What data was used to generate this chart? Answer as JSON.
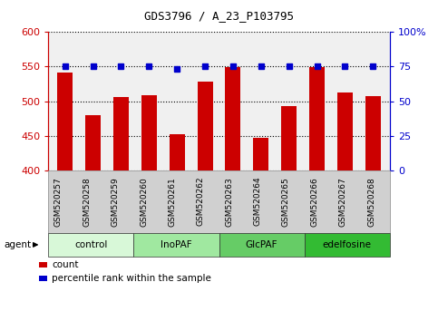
{
  "title": "GDS3796 / A_23_P103795",
  "categories": [
    "GSM520257",
    "GSM520258",
    "GSM520259",
    "GSM520260",
    "GSM520261",
    "GSM520262",
    "GSM520263",
    "GSM520264",
    "GSM520265",
    "GSM520266",
    "GSM520267",
    "GSM520268"
  ],
  "bar_values": [
    541,
    479,
    506,
    509,
    452,
    528,
    549,
    447,
    493,
    549,
    513,
    507
  ],
  "bar_color": "#cc0000",
  "percentile_values": [
    75,
    75,
    75,
    75,
    73,
    75,
    75,
    75,
    75,
    75,
    75,
    75
  ],
  "percentile_color": "#0000cc",
  "ylim_left": [
    400,
    600
  ],
  "ylim_right": [
    0,
    100
  ],
  "yticks_left": [
    400,
    450,
    500,
    550,
    600
  ],
  "yticks_right": [
    0,
    25,
    50,
    75,
    100
  ],
  "ytick_labels_left": [
    "400",
    "450",
    "500",
    "550",
    "600"
  ],
  "ytick_labels_right": [
    "0",
    "25",
    "50",
    "75",
    "100%"
  ],
  "left_tick_color": "#cc0000",
  "right_tick_color": "#0000cc",
  "groups": [
    {
      "label": "control",
      "start": 0,
      "end": 3,
      "color": "#d8f8d8"
    },
    {
      "label": "InoPAF",
      "start": 3,
      "end": 6,
      "color": "#a0e8a0"
    },
    {
      "label": "GlcPAF",
      "start": 6,
      "end": 9,
      "color": "#66cc66"
    },
    {
      "label": "edelfosine",
      "start": 9,
      "end": 12,
      "color": "#33bb33"
    }
  ],
  "agent_label": "agent",
  "legend_count_label": "count",
  "legend_percentile_label": "percentile rank within the sample",
  "bar_width": 0.55,
  "grid_linestyle": ":",
  "grid_color": "#000000",
  "background_color": "#ffffff",
  "plot_bg_color": "#f0f0f0",
  "xtick_bg_color": "#d0d0d0"
}
